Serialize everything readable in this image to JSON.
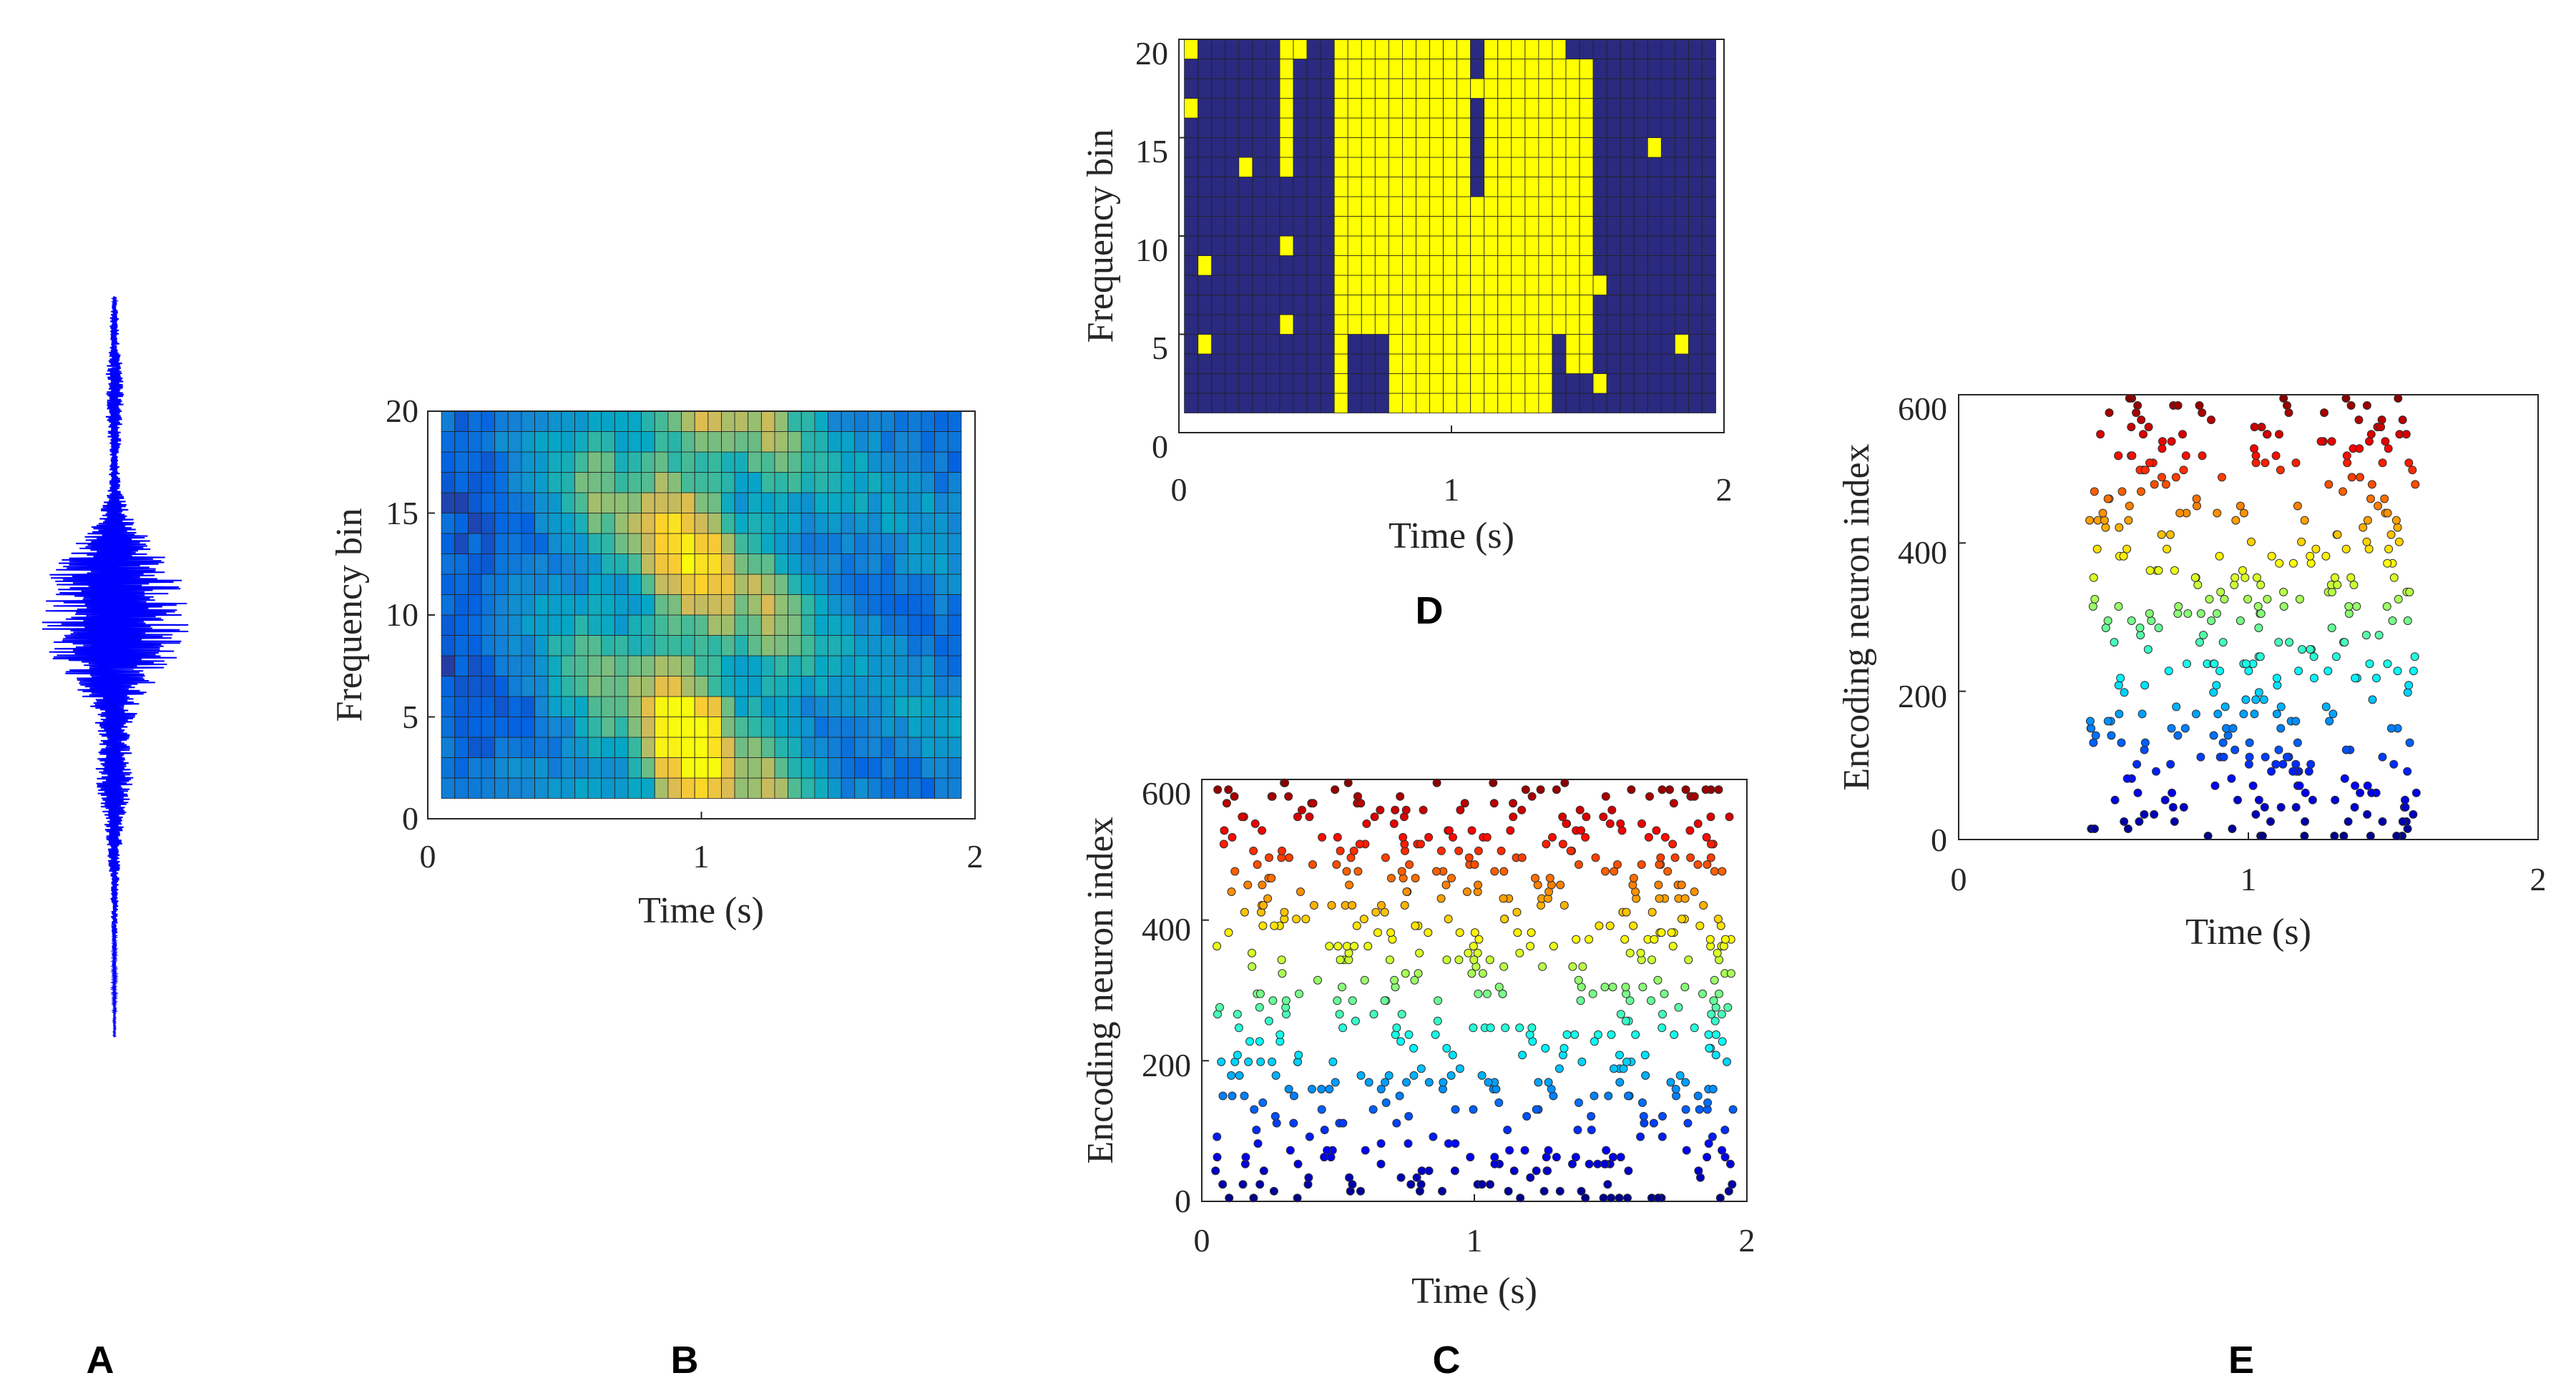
{
  "figure_labels": {
    "A": "A",
    "B": "B",
    "C": "C",
    "D": "D",
    "E": "E"
  },
  "colors": {
    "waveform": "#0000ff",
    "binary_off": "#2a2a80",
    "binary_on": "#ffff00",
    "grid_line": "#222222"
  },
  "chart_data": [
    {
      "id": "A",
      "type": "line",
      "title": "",
      "xlabel": "",
      "ylabel": "",
      "description_series": "raw audio waveform (vertical), no axes",
      "envelope": [
        [
          0.0,
          0.02
        ],
        [
          0.03,
          0.06
        ],
        [
          0.06,
          0.06
        ],
        [
          0.09,
          0.1
        ],
        [
          0.12,
          0.12
        ],
        [
          0.15,
          0.12
        ],
        [
          0.18,
          0.1
        ],
        [
          0.22,
          0.06
        ],
        [
          0.26,
          0.08
        ],
        [
          0.3,
          0.25
        ],
        [
          0.34,
          0.55
        ],
        [
          0.37,
          0.8
        ],
        [
          0.4,
          0.95
        ],
        [
          0.43,
          1.0
        ],
        [
          0.46,
          0.95
        ],
        [
          0.49,
          0.8
        ],
        [
          0.52,
          0.55
        ],
        [
          0.56,
          0.3
        ],
        [
          0.6,
          0.2
        ],
        [
          0.64,
          0.25
        ],
        [
          0.67,
          0.22
        ],
        [
          0.7,
          0.15
        ],
        [
          0.74,
          0.1
        ],
        [
          0.78,
          0.07
        ],
        [
          0.82,
          0.05
        ],
        [
          0.86,
          0.04
        ],
        [
          0.9,
          0.03
        ],
        [
          0.95,
          0.02
        ],
        [
          1.0,
          0.01
        ]
      ]
    },
    {
      "id": "B",
      "type": "heatmap",
      "title": "",
      "xlabel": "Time (s)",
      "ylabel": "Frequency bin",
      "xlim": [
        0,
        2
      ],
      "ylim": [
        0,
        20
      ],
      "xticks": [
        "0",
        "1",
        "2"
      ],
      "yticks": [
        "0",
        "5",
        "10",
        "15",
        "20"
      ],
      "n_time_bins": 39,
      "n_freq_bins": 19,
      "colormap": [
        "#352a87",
        "#0363e1",
        "#1485d4",
        "#06a7c6",
        "#38b99e",
        "#92bf73",
        "#d9ba56",
        "#fcce2e",
        "#f9fb0e"
      ],
      "activity_profile": [
        [
          0.0,
          0.18
        ],
        [
          0.1,
          0.15
        ],
        [
          0.2,
          0.2
        ],
        [
          0.3,
          0.3
        ],
        [
          0.35,
          0.28
        ],
        [
          0.4,
          0.4
        ],
        [
          0.5,
          0.45
        ],
        [
          0.6,
          0.6
        ],
        [
          0.7,
          0.58
        ],
        [
          0.78,
          0.7
        ],
        [
          0.85,
          0.88
        ],
        [
          0.95,
          0.95
        ],
        [
          1.05,
          0.85
        ],
        [
          1.15,
          0.62
        ],
        [
          1.25,
          0.68
        ],
        [
          1.35,
          0.55
        ],
        [
          1.45,
          0.42
        ],
        [
          1.6,
          0.35
        ],
        [
          1.8,
          0.33
        ],
        [
          2.0,
          0.3
        ]
      ]
    },
    {
      "id": "D",
      "type": "heatmap",
      "title": "",
      "xlabel": "Time (s)",
      "ylabel": "Frequency bin",
      "xlim": [
        0,
        2
      ],
      "ylim": [
        0,
        20
      ],
      "xticks": [
        "0",
        "1",
        "2"
      ],
      "yticks": [
        "0",
        "5",
        "10",
        "15",
        "20"
      ],
      "n_time_bins": 39,
      "n_freq_bins": 19,
      "binary": true,
      "active_bands": [
        {
          "t0": 0.37,
          "t1": 0.43,
          "f0": 13,
          "f1": 20
        },
        {
          "t0": 0.55,
          "t1": 0.62,
          "f0": 1,
          "f1": 20
        },
        {
          "t0": 0.62,
          "t1": 1.45,
          "f0": 1,
          "f1": 20
        },
        {
          "t0": 1.45,
          "t1": 1.52,
          "f0": 3,
          "f1": 18
        },
        {
          "t0": 0.02,
          "t1": 0.05,
          "f0": 19,
          "f1": 20
        }
      ],
      "inactive_holes": [
        {
          "t0": 0.62,
          "t1": 0.78,
          "f0": 1,
          "f1": 4
        },
        {
          "t0": 1.1,
          "t1": 1.13,
          "f0": 12,
          "f1": 20
        },
        {
          "t0": 1.4,
          "t1": 1.45,
          "f0": 1,
          "f1": 4
        }
      ]
    },
    {
      "id": "C",
      "type": "scatter",
      "title": "",
      "xlabel": "Time (s)",
      "ylabel": "Encoding neuron index",
      "xlim": [
        0,
        2
      ],
      "ylim": [
        0,
        620
      ],
      "xticks": [
        "0",
        "1",
        "2"
      ],
      "yticks": [
        "0",
        "200",
        "400",
        "600"
      ],
      "colormap": "jet",
      "spike_time_range": [
        0.05,
        1.95
      ],
      "n_neurons": 620
    },
    {
      "id": "E",
      "type": "scatter",
      "title": "",
      "xlabel": "Time (s)",
      "ylabel": "Encoding neuron index",
      "xlim": [
        0,
        2
      ],
      "ylim": [
        0,
        620
      ],
      "xticks": [
        "0",
        "1",
        "2"
      ],
      "yticks": [
        "0",
        "200",
        "400",
        "600"
      ],
      "colormap": "jet",
      "spike_time_range": [
        0.45,
        1.58
      ],
      "n_neurons": 620
    }
  ]
}
